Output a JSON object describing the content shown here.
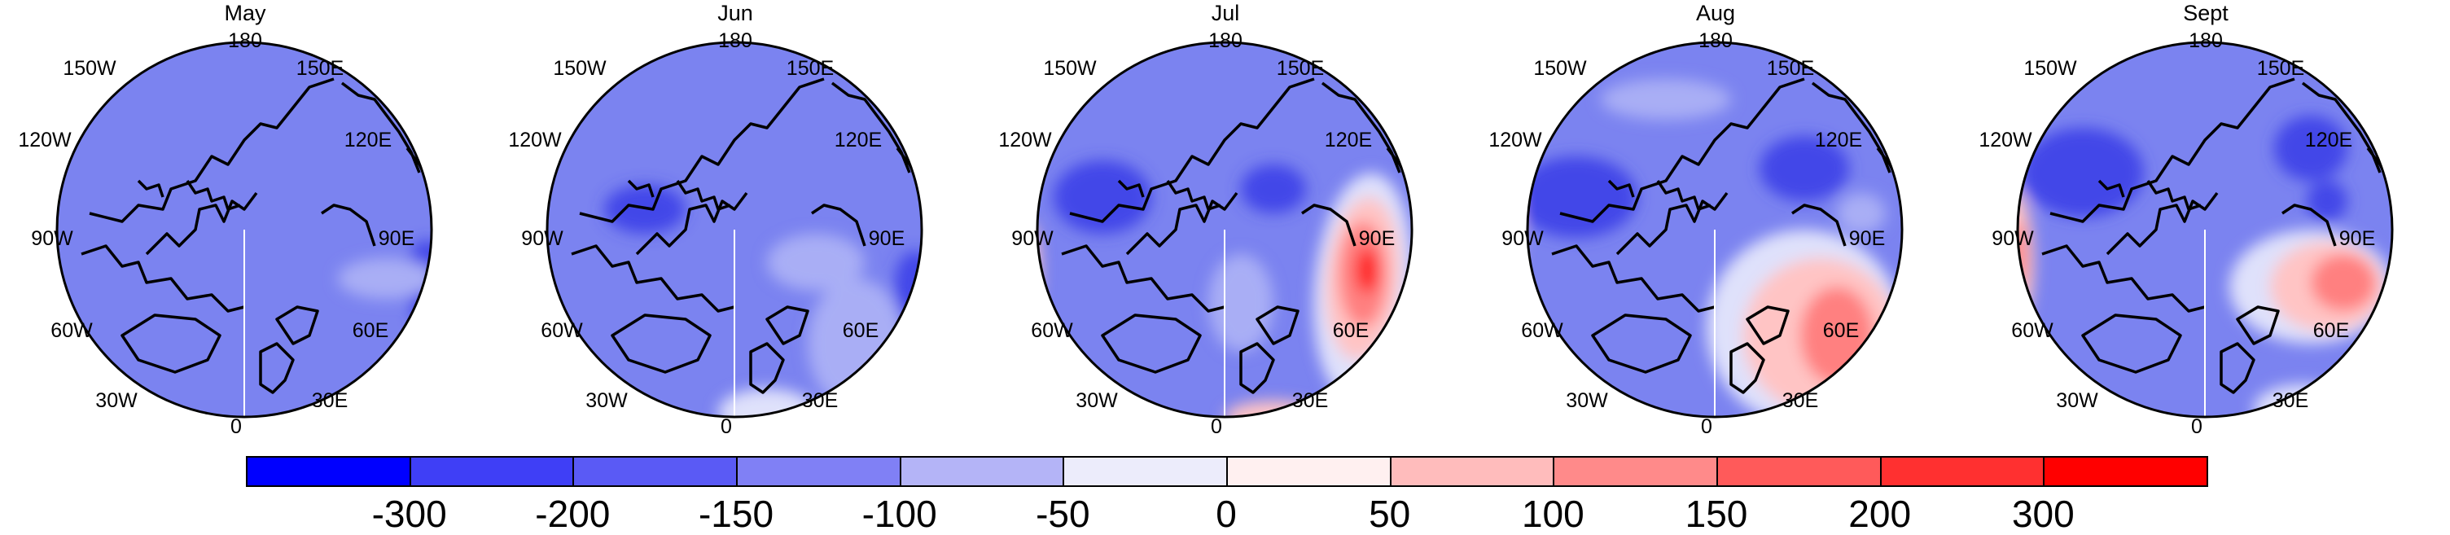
{
  "panels": [
    {
      "title": "May"
    },
    {
      "title": "Jun"
    },
    {
      "title": "Jul"
    },
    {
      "title": "Aug"
    },
    {
      "title": "Sept"
    }
  ],
  "longitude_labels": [
    "180",
    "150E",
    "120E",
    "90E",
    "60E",
    "30E",
    "0",
    "30W",
    "60W",
    "90W",
    "120W",
    "150W"
  ],
  "colorbar": {
    "levels": [
      "-300",
      "-200",
      "-150",
      "-100",
      "-50",
      "0",
      "50",
      "100",
      "150",
      "200",
      "300"
    ],
    "colors": [
      "#0000ff",
      "#3f3ff6",
      "#5a5af5",
      "#8080f5",
      "#b4b4f7",
      "#ececfb",
      "#fff0f0",
      "#ffbcbc",
      "#ff8a8a",
      "#ff5a5a",
      "#ff3030",
      "#ff0000"
    ]
  },
  "map_colors": {
    "base_blue": "#7b83f0",
    "light_blue": "#a9aef5",
    "dark_blue": "#4246e8",
    "very_light": "#dfe1fb",
    "light_red": "#ffc4c4",
    "mid_red": "#ff8080",
    "deep_red": "#ff2020",
    "coast": "#000000"
  }
}
